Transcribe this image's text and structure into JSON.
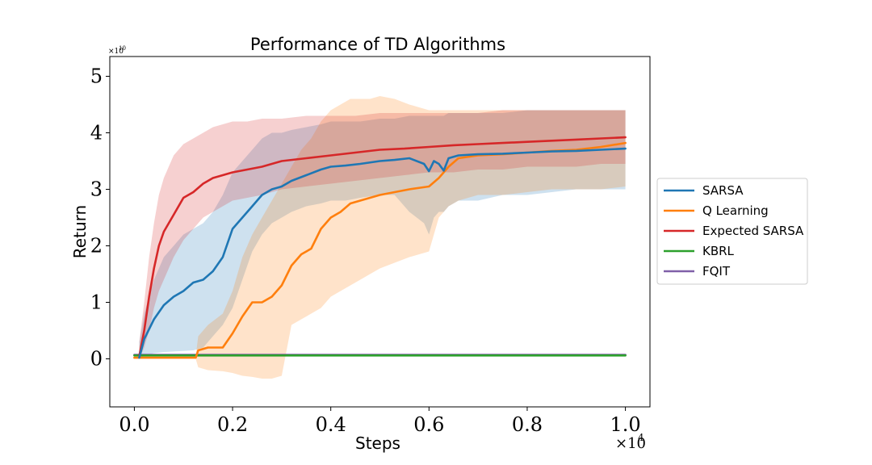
{
  "chart_data": {
    "type": "line",
    "title": "Performance of TD Algorithms",
    "xlabel": "Steps",
    "ylabel": "Return",
    "x_scale_label": "×10",
    "x_scale_exp": "4",
    "y_scale_label": "×10",
    "y_scale_exp": "10",
    "xlim": [
      -0.05,
      1.05
    ],
    "ylim": [
      -0.85,
      5.35
    ],
    "xticks": [
      0.0,
      0.2,
      0.4,
      0.6,
      0.8,
      1.0
    ],
    "xtick_labels": [
      "0.0",
      "0.2",
      "0.4",
      "0.6",
      "0.8",
      "1.0"
    ],
    "yticks": [
      0,
      1,
      2,
      3,
      4,
      5
    ],
    "ytick_labels": [
      "0",
      "1",
      "2",
      "3",
      "4",
      "5"
    ],
    "grid": false,
    "legend_position": "right-outside",
    "series": [
      {
        "name": "SARSA",
        "color": "#1f77b4",
        "x": [
          0.01,
          0.02,
          0.04,
          0.06,
          0.08,
          0.1,
          0.12,
          0.14,
          0.16,
          0.18,
          0.2,
          0.22,
          0.24,
          0.26,
          0.28,
          0.3,
          0.32,
          0.35,
          0.38,
          0.4,
          0.43,
          0.46,
          0.5,
          0.53,
          0.56,
          0.59,
          0.6,
          0.61,
          0.62,
          0.63,
          0.64,
          0.66,
          0.7,
          0.75,
          0.8,
          0.85,
          0.9,
          0.95,
          1.0
        ],
        "y": [
          0.02,
          0.35,
          0.7,
          0.95,
          1.1,
          1.2,
          1.35,
          1.4,
          1.55,
          1.8,
          2.3,
          2.5,
          2.7,
          2.9,
          3.0,
          3.05,
          3.15,
          3.25,
          3.35,
          3.4,
          3.42,
          3.45,
          3.5,
          3.52,
          3.55,
          3.45,
          3.32,
          3.5,
          3.45,
          3.33,
          3.55,
          3.6,
          3.62,
          3.63,
          3.65,
          3.67,
          3.68,
          3.7,
          3.72
        ],
        "band_lower": [
          0.0,
          0.05,
          0.1,
          0.12,
          0.13,
          0.14,
          0.15,
          0.2,
          0.4,
          0.6,
          0.9,
          1.4,
          1.9,
          2.2,
          2.4,
          2.5,
          2.6,
          2.7,
          2.75,
          2.8,
          2.8,
          2.85,
          2.9,
          2.9,
          2.6,
          2.4,
          2.2,
          2.5,
          2.6,
          2.6,
          2.7,
          2.8,
          2.8,
          2.9,
          2.9,
          2.95,
          3.0,
          3.0,
          3.0
        ],
        "band_upper": [
          0.3,
          0.8,
          1.4,
          1.8,
          2.0,
          2.2,
          2.3,
          2.4,
          2.6,
          2.9,
          3.3,
          3.5,
          3.7,
          3.9,
          4.0,
          4.0,
          4.05,
          4.1,
          4.15,
          4.2,
          4.2,
          4.2,
          4.25,
          4.25,
          4.3,
          4.3,
          4.3,
          4.3,
          4.3,
          4.3,
          4.35,
          4.35,
          4.35,
          4.35,
          4.4,
          4.4,
          4.4,
          4.4,
          4.4
        ]
      },
      {
        "name": "Q Learning",
        "color": "#ff7f0e",
        "x": [
          0.0,
          0.05,
          0.1,
          0.125,
          0.13,
          0.15,
          0.18,
          0.2,
          0.22,
          0.24,
          0.26,
          0.28,
          0.3,
          0.32,
          0.34,
          0.36,
          0.38,
          0.4,
          0.42,
          0.44,
          0.46,
          0.48,
          0.5,
          0.53,
          0.56,
          0.6,
          0.62,
          0.64,
          0.66,
          0.7,
          0.75,
          0.8,
          0.85,
          0.9,
          0.95,
          1.0
        ],
        "y": [
          0.02,
          0.02,
          0.02,
          0.02,
          0.15,
          0.2,
          0.2,
          0.45,
          0.75,
          1.0,
          1.0,
          1.1,
          1.3,
          1.65,
          1.85,
          1.95,
          2.3,
          2.5,
          2.6,
          2.75,
          2.8,
          2.85,
          2.9,
          2.95,
          3.0,
          3.05,
          3.2,
          3.4,
          3.55,
          3.6,
          3.62,
          3.65,
          3.68,
          3.7,
          3.75,
          3.82
        ],
        "band_lower": [
          0.0,
          0.0,
          0.0,
          0.0,
          -0.15,
          -0.2,
          -0.22,
          -0.25,
          -0.3,
          -0.32,
          -0.35,
          -0.35,
          -0.3,
          0.6,
          0.7,
          0.8,
          0.9,
          1.1,
          1.2,
          1.3,
          1.4,
          1.5,
          1.6,
          1.7,
          1.8,
          1.9,
          2.5,
          2.7,
          2.8,
          2.9,
          2.9,
          2.95,
          3.0,
          3.0,
          3.0,
          3.05
        ],
        "band_upper": [
          0.05,
          0.05,
          0.05,
          0.05,
          0.4,
          0.6,
          0.8,
          1.2,
          1.8,
          2.2,
          2.5,
          2.8,
          3.1,
          3.4,
          3.7,
          3.9,
          4.2,
          4.4,
          4.5,
          4.6,
          4.6,
          4.6,
          4.65,
          4.6,
          4.5,
          4.4,
          4.4,
          4.4,
          4.4,
          4.4,
          4.4,
          4.4,
          4.4,
          4.4,
          4.4,
          4.4
        ]
      },
      {
        "name": "Expected SARSA",
        "color": "#d62728",
        "x": [
          0.01,
          0.02,
          0.03,
          0.04,
          0.05,
          0.06,
          0.07,
          0.08,
          0.1,
          0.12,
          0.14,
          0.16,
          0.18,
          0.2,
          0.23,
          0.26,
          0.3,
          0.35,
          0.4,
          0.45,
          0.5,
          0.55,
          0.6,
          0.65,
          0.7,
          0.75,
          0.8,
          0.85,
          0.9,
          0.95,
          1.0
        ],
        "y": [
          0.05,
          0.5,
          1.1,
          1.6,
          2.0,
          2.25,
          2.4,
          2.55,
          2.85,
          2.95,
          3.1,
          3.2,
          3.25,
          3.3,
          3.35,
          3.4,
          3.5,
          3.55,
          3.6,
          3.65,
          3.7,
          3.72,
          3.75,
          3.78,
          3.8,
          3.82,
          3.84,
          3.86,
          3.88,
          3.9,
          3.92
        ],
        "band_lower": [
          0.0,
          0.2,
          0.5,
          0.9,
          1.2,
          1.4,
          1.6,
          1.8,
          2.1,
          2.3,
          2.5,
          2.6,
          2.7,
          2.8,
          2.85,
          2.9,
          3.0,
          3.05,
          3.1,
          3.15,
          3.2,
          3.25,
          3.3,
          3.3,
          3.35,
          3.35,
          3.4,
          3.4,
          3.4,
          3.45,
          3.45
        ],
        "band_upper": [
          0.3,
          1.0,
          1.8,
          2.4,
          2.9,
          3.2,
          3.4,
          3.6,
          3.8,
          3.9,
          4.0,
          4.1,
          4.15,
          4.2,
          4.2,
          4.25,
          4.25,
          4.3,
          4.3,
          4.3,
          4.35,
          4.35,
          4.35,
          4.35,
          4.35,
          4.4,
          4.4,
          4.4,
          4.4,
          4.4,
          4.4
        ]
      },
      {
        "name": "KBRL",
        "color": "#2ca02c",
        "x": [
          0.0,
          1.0
        ],
        "y": [
          0.06,
          0.06
        ]
      },
      {
        "name": "FQIT",
        "color": "#8060a8",
        "x": [
          0.0,
          1.0
        ],
        "y": [
          0.07,
          0.07
        ]
      }
    ]
  }
}
